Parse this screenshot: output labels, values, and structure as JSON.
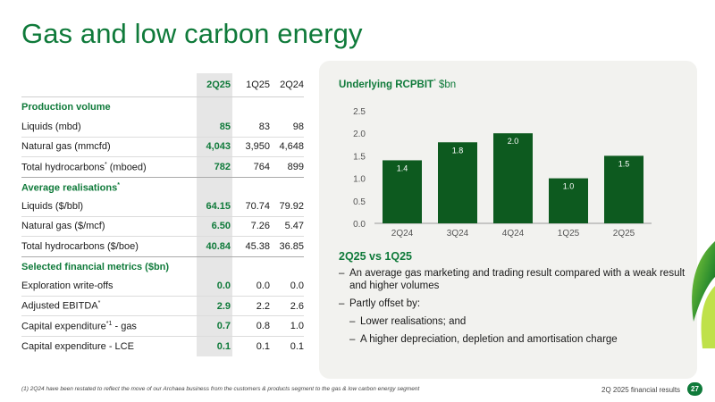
{
  "title": "Gas and low carbon energy",
  "table": {
    "columns": [
      "2Q25",
      "1Q25",
      "2Q24"
    ],
    "groups": [
      {
        "heading": "Production volume",
        "rows": [
          {
            "label": "Liquids (mbd)",
            "values": [
              "85",
              "83",
              "98"
            ]
          },
          {
            "label": "Natural gas (mmcfd)",
            "values": [
              "4,043",
              "3,950",
              "4,648"
            ]
          },
          {
            "label": "Total hydrocarbons",
            "sup": "*",
            "suffix": " (mboed)",
            "values": [
              "782",
              "764",
              "899"
            ]
          }
        ]
      },
      {
        "heading": "Average realisations",
        "heading_sup": "*",
        "rows": [
          {
            "label": "Liquids ($/bbl)",
            "values": [
              "64.15",
              "70.74",
              "79.92"
            ]
          },
          {
            "label": "Natural gas ($/mcf)",
            "values": [
              "6.50",
              "7.26",
              "5.47"
            ]
          },
          {
            "label": "Total hydrocarbons ($/boe)",
            "values": [
              "40.84",
              "45.38",
              "36.85"
            ]
          }
        ]
      },
      {
        "heading": "Selected financial metrics ($bn)",
        "rows": [
          {
            "label": "Exploration write-offs",
            "values": [
              "0.0",
              "0.0",
              "0.0"
            ]
          },
          {
            "label": "Adjusted EBITDA",
            "sup": "*",
            "suffix": "",
            "values": [
              "2.9",
              "2.2",
              "2.6"
            ]
          },
          {
            "label": "Capital expenditure",
            "sup": "*1",
            "suffix": " - gas",
            "values": [
              "0.7",
              "0.8",
              "1.0"
            ]
          },
          {
            "label": "Capital expenditure - LCE",
            "values": [
              "0.1",
              "0.1",
              "0.1"
            ]
          }
        ]
      }
    ]
  },
  "chart_title": {
    "bold": "Underlying RCPBIT",
    "sup": "*",
    "unit": " $bn"
  },
  "chart_data": {
    "type": "bar",
    "categories": [
      "2Q24",
      "3Q24",
      "4Q24",
      "1Q25",
      "2Q25"
    ],
    "values": [
      1.4,
      1.8,
      2.0,
      1.0,
      1.5
    ],
    "data_labels": [
      "1.4",
      "1.8",
      "2.0",
      "1.0",
      "1.5"
    ],
    "yticks": [
      "0.0",
      "0.5",
      "1.0",
      "1.5",
      "2.0",
      "2.5"
    ],
    "ylim": [
      0,
      2.5
    ],
    "bar_color": "#0d5a1f",
    "grid": false
  },
  "comparison": {
    "title": "2Q25 vs 1Q25",
    "bullets": [
      {
        "text": "An average gas marketing and trading result compared with a weak result and higher volumes",
        "level": 0
      },
      {
        "text": "Partly offset by:",
        "level": 0
      },
      {
        "text": "Lower realisations; and",
        "level": 1
      },
      {
        "text": "A higher depreciation, depletion and amortisation charge",
        "level": 1
      }
    ]
  },
  "footnote": "(1) 2Q24 have been restated to reflect the move of our Archaea business from the customers & products segment to the gas & low carbon energy segment",
  "footer": {
    "label": "2Q 2025 financial results",
    "page": "27"
  },
  "colors": {
    "accent": "#0f7a3a",
    "highlight_col": "#e6e6e6",
    "panel_bg": "#f2f2ef"
  }
}
